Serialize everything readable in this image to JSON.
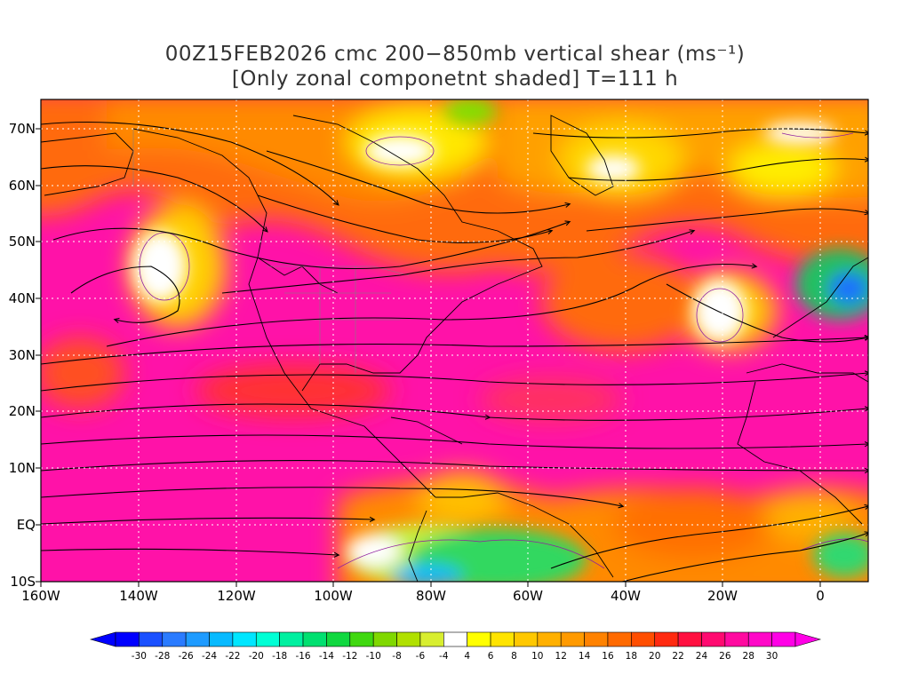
{
  "title": {
    "line1": "00Z15FEB2026 cmc 200−850mb vertical shear (ms⁻¹)",
    "line2": "[Only zonal componetnt shaded] T=111 h"
  },
  "lat_labels": [
    "70N",
    "60N",
    "50N",
    "40N",
    "30N",
    "20N",
    "10N",
    "EQ",
    "10S"
  ],
  "lon_labels": [
    "160W",
    "140W",
    "120W",
    "100W",
    "80W",
    "60W",
    "40W",
    "20W",
    "0"
  ],
  "colorbar": {
    "labels": [
      "-30",
      "-28",
      "-26",
      "-24",
      "-22",
      "-20",
      "-18",
      "-16",
      "-14",
      "-12",
      "-10",
      "-8",
      "-6",
      "-4",
      "4",
      "6",
      "8",
      "10",
      "12",
      "14",
      "16",
      "18",
      "20",
      "22",
      "24",
      "26",
      "28",
      "30"
    ],
    "colors": [
      "#0000ff",
      "#1a50ff",
      "#2a7bff",
      "#1e9bff",
      "#08baff",
      "#00e6ff",
      "#00ffd5",
      "#00f0a0",
      "#00e070",
      "#10d840",
      "#40d810",
      "#80d800",
      "#b0e000",
      "#d8ee30",
      "#ffffff",
      "#ffff00",
      "#ffe400",
      "#ffc800",
      "#ffb000",
      "#ff9a00",
      "#ff8200",
      "#ff6a00",
      "#ff4e00",
      "#ff2a10",
      "#ff1040",
      "#ff0a70",
      "#ff0aa0",
      "#ff08c8",
      "#ff00e6"
    ]
  },
  "map": {
    "lon_range": [
      -160,
      10
    ],
    "lat_range": [
      -10,
      75
    ],
    "wind_field": "streamlines"
  }
}
